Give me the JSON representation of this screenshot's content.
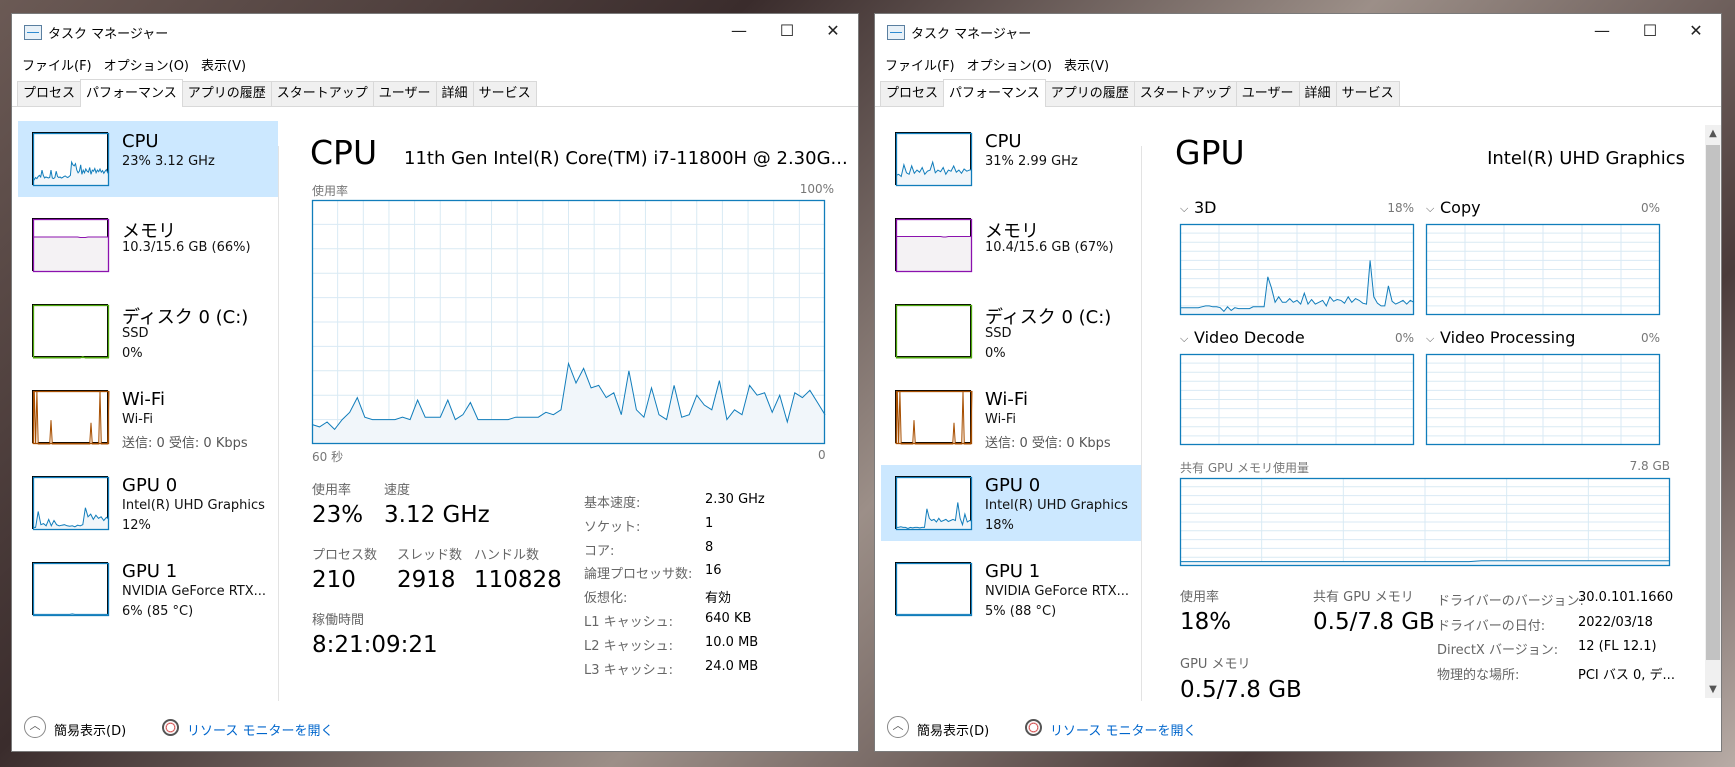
{
  "windows": [
    {
      "title": "タスク マネージャー",
      "menu": [
        "ファイル(F)",
        "オプション(O)",
        "表示(V)"
      ],
      "tabs": [
        "プロセス",
        "パフォーマンス",
        "アプリの履歴",
        "スタートアップ",
        "ユーザー",
        "詳細",
        "サービス"
      ],
      "active_tab": 1,
      "selected_item": 0,
      "sidebar": [
        {
          "name": "CPU",
          "lines": [
            "23% 3.12 GHz"
          ],
          "color": "#117dbb",
          "fill": "#f1f6fa",
          "history": [
            15,
            12,
            16,
            14,
            18,
            20,
            17,
            30,
            20,
            15,
            17,
            16,
            15,
            16,
            30,
            15,
            14,
            16,
            28,
            18,
            16,
            17,
            15,
            16,
            18,
            19,
            17,
            16,
            18,
            20,
            45,
            40,
            38,
            42,
            30,
            25,
            28,
            40,
            22,
            30,
            25,
            32,
            28,
            26,
            35,
            22,
            30,
            28,
            33,
            25,
            30,
            27,
            32,
            26,
            29,
            24,
            28,
            31,
            25,
            27
          ]
        },
        {
          "name": "メモリ",
          "lines": [
            "10.3/15.6 GB (66%)"
          ],
          "color": "#8b12ae",
          "fill": "#f4f2f4",
          "history": [
            66,
            66,
            66,
            66,
            66,
            66,
            66,
            66,
            66,
            66,
            66,
            66,
            66,
            66,
            66,
            66,
            66,
            66,
            65,
            65,
            65,
            66,
            66,
            66,
            66,
            66,
            66,
            66,
            66,
            66
          ]
        },
        {
          "name": "ディスク 0 (C:)",
          "lines": [
            "SSD",
            "0%"
          ],
          "color": "#4da60c",
          "fill": "#eff7ea",
          "history": [
            0,
            0,
            0,
            0,
            0,
            0,
            0,
            0,
            0,
            0,
            0,
            0,
            0,
            0,
            0,
            0,
            0,
            0,
            0,
            3,
            0,
            0,
            0,
            0,
            0,
            0,
            0,
            0,
            0,
            0
          ]
        },
        {
          "name": "Wi-Fi",
          "lines": [
            "Wi-Fi",
            "送信: 0 受信: 0 Kbps"
          ],
          "color": "#a74f01",
          "fill": "#fcf3eb",
          "history": [
            0,
            100,
            0,
            100,
            0,
            0,
            0,
            0,
            0,
            0,
            0,
            0,
            0,
            0,
            45,
            0,
            0,
            0,
            0,
            0,
            0,
            0,
            0,
            0,
            0,
            0,
            0,
            0,
            0,
            0,
            0,
            0,
            0,
            0,
            0,
            0,
            0,
            0,
            0,
            0,
            0,
            0,
            0,
            0,
            0,
            40,
            0,
            0,
            0,
            0,
            0,
            0,
            100,
            0,
            0,
            0,
            0,
            0,
            0,
            100
          ]
        },
        {
          "name": "GPU 0",
          "lines": [
            "Intel(R) UHD Graphics",
            "12%"
          ],
          "color": "#117dbb",
          "fill": "#f1f6fa",
          "history": [
            5,
            5,
            35,
            10,
            12,
            8,
            20,
            8,
            18,
            10,
            8,
            9,
            10,
            8,
            7,
            8,
            6,
            9,
            8,
            10,
            42,
            25,
            30,
            20,
            28,
            22,
            25,
            18,
            24,
            20
          ]
        },
        {
          "name": "GPU 1",
          "lines": [
            "NVIDIA GeForce RTX...",
            "6% (85 °C)"
          ],
          "color": "#117dbb",
          "fill": "#f1f6fa",
          "history": [
            3,
            3,
            3,
            3,
            3,
            3,
            3,
            3,
            3,
            3,
            3,
            3,
            3,
            3,
            3,
            4,
            3,
            3,
            3,
            3,
            3,
            3,
            3,
            3,
            3,
            3,
            3,
            3,
            3,
            3
          ]
        }
      ],
      "footer": {
        "fewer_details": "簡易表示(D)",
        "resource_monitor": "リソース モニターを開く"
      },
      "window_buttons": {
        "minimize": "—",
        "maximize": "☐",
        "close": "✕"
      }
    },
    {
      "title": "タスク マネージャー",
      "menu": [
        "ファイル(F)",
        "オプション(O)",
        "表示(V)"
      ],
      "tabs": [
        "プロセス",
        "パフォーマンス",
        "アプリの履歴",
        "スタートアップ",
        "ユーザー",
        "詳細",
        "サービス"
      ],
      "active_tab": 1,
      "selected_item": 4,
      "sidebar": [
        {
          "name": "CPU",
          "lines": [
            "31% 2.99 GHz"
          ],
          "color": "#117dbb",
          "fill": "#f1f6fa",
          "history": [
            20,
            22,
            18,
            40,
            25,
            22,
            38,
            24,
            30,
            26,
            35,
            22,
            28,
            30,
            45,
            25,
            30,
            27,
            35,
            22,
            30,
            28,
            38,
            26,
            30,
            24,
            32,
            28,
            30,
            31
          ]
        },
        {
          "name": "メモリ",
          "lines": [
            "10.4/15.6 GB (67%)"
          ],
          "color": "#8b12ae",
          "fill": "#f4f2f4",
          "history": [
            67,
            67,
            67,
            67,
            67,
            67,
            67,
            67,
            67,
            67,
            67,
            67,
            67,
            67,
            67,
            67,
            67,
            67,
            66,
            66,
            67,
            67,
            67,
            67,
            67,
            67,
            67,
            67,
            67,
            67
          ]
        },
        {
          "name": "ディスク 0 (C:)",
          "lines": [
            "SSD",
            "0%"
          ],
          "color": "#4da60c",
          "fill": "#eff7ea",
          "history": [
            0,
            0,
            0,
            0,
            0,
            0,
            0,
            0,
            0,
            0,
            0,
            0,
            0,
            0,
            0,
            0,
            0,
            0,
            0,
            0,
            0,
            0,
            0,
            0,
            0,
            0,
            0,
            0,
            0,
            0
          ]
        },
        {
          "name": "Wi-Fi",
          "lines": [
            "Wi-Fi",
            "送信: 0 受信: 0 Kbps"
          ],
          "color": "#a74f01",
          "fill": "#fcf3eb",
          "history": [
            0,
            100,
            0,
            100,
            0,
            0,
            0,
            0,
            0,
            0,
            0,
            0,
            0,
            0,
            45,
            0,
            0,
            0,
            0,
            0,
            0,
            0,
            0,
            0,
            0,
            0,
            0,
            0,
            0,
            0,
            0,
            0,
            0,
            0,
            0,
            0,
            0,
            0,
            0,
            0,
            0,
            0,
            0,
            0,
            0,
            40,
            0,
            0,
            0,
            0,
            0,
            0,
            100,
            0,
            0,
            0,
            0,
            0,
            0,
            100
          ]
        },
        {
          "name": "GPU 0",
          "lines": [
            "Intel(R) UHD Graphics",
            "18%"
          ],
          "color": "#117dbb",
          "fill": "#f1f6fa",
          "history": [
            5,
            5,
            6,
            5,
            5,
            3,
            5,
            4,
            5,
            5,
            4,
            5,
            5,
            40,
            22,
            18,
            20,
            15,
            22,
            16,
            18,
            20,
            16,
            18,
            20,
            18,
            52,
            22,
            10,
            30,
            15,
            18,
            17
          ]
        },
        {
          "name": "GPU 1",
          "lines": [
            "NVIDIA GeForce RTX...",
            "5% (88 °C)"
          ],
          "color": "#117dbb",
          "fill": "#f1f6fa",
          "history": [
            3,
            3,
            3,
            3,
            3,
            3,
            3,
            3,
            3,
            3,
            3,
            3,
            3,
            3,
            3,
            3,
            3,
            3,
            3,
            3,
            3,
            3,
            3,
            3,
            3,
            3,
            3,
            3,
            3,
            3
          ]
        }
      ],
      "footer": {
        "fewer_details": "簡易表示(D)",
        "resource_monitor": "リソース モニターを開く"
      },
      "window_buttons": {
        "minimize": "—",
        "maximize": "☐",
        "close": "✕"
      }
    }
  ],
  "cpu": {
    "title": "CPU",
    "model": "11th Gen Intel(R) Core(TM) i7-11800H @ 2.30G...",
    "chart_label": "使用率",
    "chart_max": "100%",
    "chart_time_left": "60 秒",
    "chart_time_right": "0",
    "stats": {
      "usage_label": "使用率",
      "usage": "23%",
      "speed_label": "速度",
      "speed": "3.12 GHz",
      "processes_label": "プロセス数",
      "processes": "210",
      "threads_label": "スレッド数",
      "threads": "2918",
      "handles_label": "ハンドル数",
      "handles": "110828",
      "uptime_label": "稼働時間",
      "uptime": "8:21:09:21"
    },
    "details": [
      {
        "label": "基本速度:",
        "value": "2.30 GHz"
      },
      {
        "label": "ソケット:",
        "value": "1"
      },
      {
        "label": "コア:",
        "value": "8"
      },
      {
        "label": "論理プロセッサ数:",
        "value": "16"
      },
      {
        "label": "仮想化:",
        "value": "有効"
      },
      {
        "label": "L1 キャッシュ:",
        "value": "640 KB"
      },
      {
        "label": "L2 キャッシュ:",
        "value": "10.0 MB"
      },
      {
        "label": "L3 キャッシュ:",
        "value": "24.0 MB"
      }
    ],
    "chart_data": {
      "type": "area",
      "ylim": [
        0,
        100
      ],
      "grid": true,
      "color": "#117dbb",
      "values": [
        8,
        7,
        9,
        6,
        10,
        13,
        19,
        11,
        10,
        10,
        10,
        10,
        11,
        10,
        18,
        11,
        11,
        11,
        18,
        10,
        12,
        17,
        10,
        10,
        10,
        10,
        10,
        11,
        11,
        11,
        11,
        13,
        12,
        14,
        33,
        25,
        31,
        23,
        24,
        19,
        21,
        12,
        30,
        14,
        11,
        23,
        12,
        10,
        24,
        11,
        12,
        20,
        16,
        14,
        26,
        10,
        14,
        12,
        24,
        20,
        21,
        13,
        20,
        9,
        21,
        19,
        22,
        17,
        12
      ]
    }
  },
  "gpu": {
    "title": "GPU",
    "model": "Intel(R) UHD Graphics",
    "engines": [
      {
        "name": "3D",
        "value": "18%",
        "values": [
          8,
          8,
          8,
          8,
          8,
          8,
          9,
          10,
          10,
          9,
          9,
          8,
          4,
          9,
          5,
          8,
          7,
          7,
          7,
          7,
          9,
          9,
          9,
          9,
          42,
          30,
          14,
          20,
          14,
          14,
          18,
          14,
          16,
          12,
          24,
          12,
          17,
          12,
          14,
          16,
          10,
          20,
          15,
          17,
          16,
          13,
          20,
          14,
          18,
          16,
          13,
          12,
          60,
          20,
          13,
          10,
          10,
          32,
          15,
          12,
          14,
          16,
          12,
          16,
          14
        ]
      },
      {
        "name": "Copy",
        "value": "0%",
        "values": []
      },
      {
        "name": "Video Decode",
        "value": "0%",
        "values": []
      },
      {
        "name": "Video Processing",
        "value": "0%",
        "values": []
      }
    ],
    "shared_memory_label": "共有 GPU メモリ使用量",
    "shared_memory_max": "7.8 GB",
    "shared_memory_values": [
      5,
      5,
      5,
      5,
      5,
      5,
      5,
      5,
      5,
      5,
      5,
      5,
      5,
      5,
      5,
      5,
      5,
      5,
      5,
      5,
      5,
      5,
      5,
      5,
      6,
      6,
      6,
      6,
      6,
      6,
      6,
      6,
      6,
      6,
      6,
      6,
      6,
      6,
      6,
      6
    ],
    "stats": {
      "usage_label": "使用率",
      "usage": "18%",
      "shared_label": "共有 GPU メモリ",
      "shared": "0.5/7.8 GB",
      "gpu_mem_label": "GPU メモリ",
      "gpu_mem": "0.5/7.8 GB"
    },
    "details": [
      {
        "label": "ドライバーのバージョン:",
        "value": "30.0.101.1660"
      },
      {
        "label": "ドライバーの日付:",
        "value": "2022/03/18"
      },
      {
        "label": "DirectX バージョン:",
        "value": "12 (FL 12.1)"
      },
      {
        "label": "物理的な場所:",
        "value": "PCI バス 0, デ..."
      }
    ]
  },
  "colors": {
    "selection": "#cce8ff",
    "graph_line": "#117dbb",
    "graph_grid": "#d9eaf4",
    "link": "#0066cc"
  }
}
